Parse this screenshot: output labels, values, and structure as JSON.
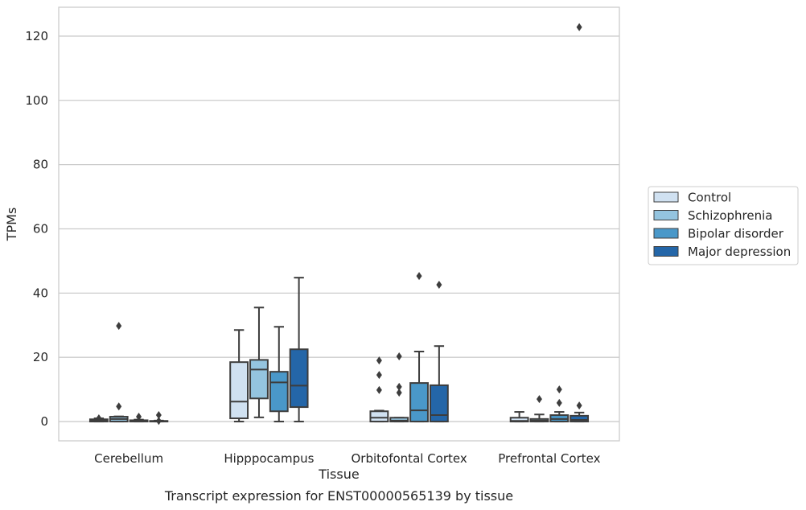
{
  "chart_data": {
    "type": "box",
    "title": "",
    "caption": "Transcript expression for ENST00000565139 by tissue",
    "xlabel": "Tissue",
    "ylabel": "TPMs",
    "ylim": [
      -6,
      129
    ],
    "yticks": [
      0,
      20,
      40,
      60,
      80,
      100,
      120
    ],
    "grid": true,
    "legend_position": "right",
    "categories": [
      "Cerebellum",
      "Hipppocampus",
      "Orbitofontal Cortex",
      "Prefrontal Cortex"
    ],
    "series": [
      {
        "name": "Control",
        "color": "#d0e1f1",
        "boxes": [
          {
            "whisker_low": 0,
            "q1": 0,
            "median": 0.3,
            "q3": 0.7,
            "whisker_high": 1.0,
            "outliers": [
              1.0
            ]
          },
          {
            "whisker_low": 0,
            "q1": 1,
            "median": 6.2,
            "q3": 18.5,
            "whisker_high": 28.5,
            "outliers": []
          },
          {
            "whisker_low": 0,
            "q1": 0,
            "median": 1.2,
            "q3": 3.2,
            "whisker_high": 3.4,
            "outliers": [
              9.8,
              14.5,
              19.0
            ]
          },
          {
            "whisker_low": 0,
            "q1": 0,
            "median": 0.2,
            "q3": 1.2,
            "whisker_high": 3.0,
            "outliers": []
          }
        ]
      },
      {
        "name": "Schizophrenia",
        "color": "#94c4df",
        "boxes": [
          {
            "whisker_low": 0,
            "q1": 0,
            "median": 0.8,
            "q3": 1.5,
            "whisker_high": 1.6,
            "outliers": [
              4.7,
              29.8
            ]
          },
          {
            "whisker_low": 1.3,
            "q1": 7.2,
            "median": 16.2,
            "q3": 19.2,
            "whisker_high": 35.5,
            "outliers": []
          },
          {
            "whisker_low": 0,
            "q1": 0,
            "median": 0.3,
            "q3": 1.2,
            "whisker_high": 1.2,
            "outliers": [
              9.0,
              10.8,
              20.3
            ]
          },
          {
            "whisker_low": 0,
            "q1": 0,
            "median": 0.3,
            "q3": 0.8,
            "whisker_high": 2.2,
            "outliers": [
              7.0
            ]
          }
        ]
      },
      {
        "name": "Bipolar disorder",
        "color": "#4a98c9",
        "boxes": [
          {
            "whisker_low": 0,
            "q1": 0,
            "median": 0.1,
            "q3": 0.4,
            "whisker_high": 0.6,
            "outliers": [
              1.5
            ]
          },
          {
            "whisker_low": 0,
            "q1": 3.2,
            "median": 12.2,
            "q3": 15.5,
            "whisker_high": 29.5,
            "outliers": []
          },
          {
            "whisker_low": 0,
            "q1": 0,
            "median": 3.5,
            "q3": 12.0,
            "whisker_high": 21.8,
            "outliers": [
              45.3
            ]
          },
          {
            "whisker_low": 0,
            "q1": 0,
            "median": 0.8,
            "q3": 2.0,
            "whisker_high": 3.0,
            "outliers": [
              5.8,
              10.0
            ]
          }
        ]
      },
      {
        "name": "Major depression",
        "color": "#2466a8",
        "boxes": [
          {
            "whisker_low": 0,
            "q1": 0,
            "median": 0.1,
            "q3": 0.2,
            "whisker_high": 0.3,
            "outliers": [
              0.2,
              2.0
            ]
          },
          {
            "whisker_low": 0,
            "q1": 4.5,
            "median": 11.2,
            "q3": 22.5,
            "whisker_high": 44.8,
            "outliers": []
          },
          {
            "whisker_low": 0,
            "q1": 0,
            "median": 2.0,
            "q3": 11.3,
            "whisker_high": 23.5,
            "outliers": [
              42.6
            ]
          },
          {
            "whisker_low": 0,
            "q1": 0,
            "median": 0.5,
            "q3": 1.8,
            "whisker_high": 2.8,
            "outliers": [
              5.0,
              122.8
            ]
          }
        ]
      }
    ]
  }
}
